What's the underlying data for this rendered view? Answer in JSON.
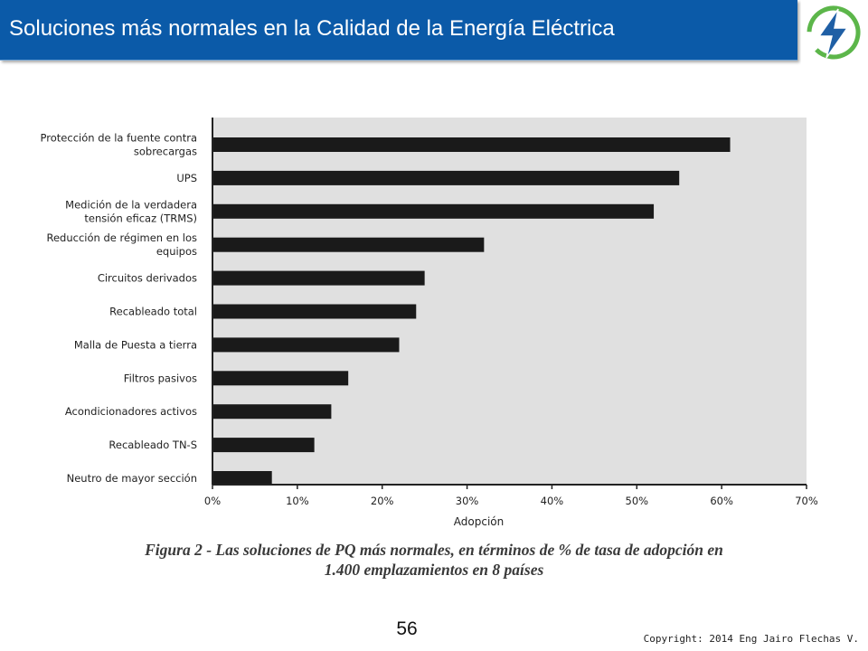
{
  "header": {
    "title": "Soluciones más normales en la Calidad de la Energía Eléctrica",
    "logo_icon": "lightning-bolt-icon",
    "colors": {
      "title_bar": "#0b5aa8",
      "logo_green": "#5cb64a",
      "logo_blue": "#1f5fa5"
    }
  },
  "chart_data": {
    "type": "bar",
    "orientation": "horizontal",
    "categories": [
      "Protección de la fuente contra sobrecargas",
      "UPS",
      "Medición de la verdadera tensión eficaz (TRMS)",
      "Reducción de régimen en los equipos",
      "Circuitos derivados",
      "Recableado total",
      "Malla de Puesta a tierra",
      "Filtros pasivos",
      "Acondicionadores activos",
      "Recableado TN-S",
      "Neutro de mayor sección"
    ],
    "category_lines": [
      [
        "Protección de la fuente contra",
        "sobrecargas"
      ],
      [
        "UPS"
      ],
      [
        "Medición de la verdadera",
        "tensión eficaz (TRMS)"
      ],
      [
        "Reducción de régimen en los",
        "equipos"
      ],
      [
        "Circuitos derivados"
      ],
      [
        "Recableado total"
      ],
      [
        "Malla de Puesta a tierra"
      ],
      [
        "Filtros pasivos"
      ],
      [
        "Acondicionadores activos"
      ],
      [
        "Recableado TN-S"
      ],
      [
        "Neutro de mayor sección"
      ]
    ],
    "values": [
      61,
      55,
      52,
      32,
      25,
      24,
      22,
      16,
      14,
      12,
      7
    ],
    "xlabel": "Adopción",
    "ylabel": "",
    "xlim": [
      0,
      70
    ],
    "xticks": [
      0,
      10,
      20,
      30,
      40,
      50,
      60,
      70
    ],
    "xtick_labels": [
      "0%",
      "10%",
      "20%",
      "30%",
      "40%",
      "50%",
      "60%",
      "70%"
    ],
    "grid": false,
    "colors": {
      "bar": "#1a1a1a",
      "plot_background": "#e0e0e0"
    }
  },
  "caption": {
    "line1": "Figura 2 - Las soluciones de PQ más normales, en términos de % de tasa de adopción en",
    "line2": "1.400 emplazamientos en 8 países"
  },
  "footer": {
    "page_number": "56",
    "copyright": "Copyright: 2014 Eng Jairo Flechas V."
  }
}
